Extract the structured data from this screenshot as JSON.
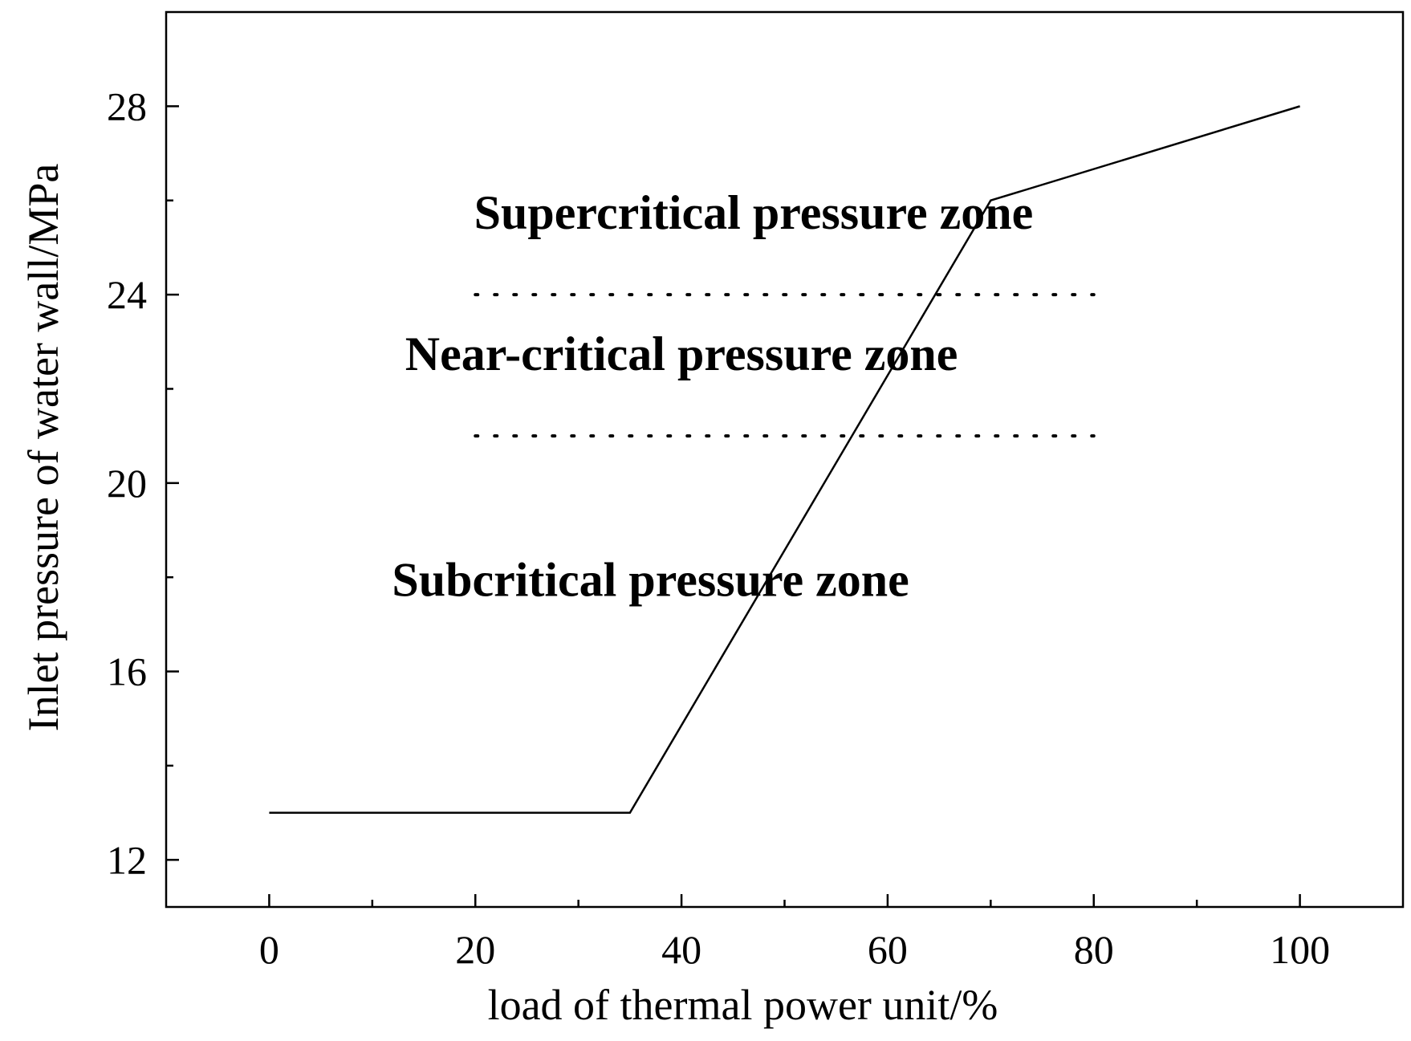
{
  "chart_data": {
    "type": "line",
    "title": "",
    "xlabel": "load of thermal power unit/%",
    "ylabel": "Inlet pressure of water wall/MPa",
    "xlim": [
      -10,
      110
    ],
    "ylim": [
      11,
      30
    ],
    "xticks": [
      0,
      20,
      40,
      60,
      80,
      100
    ],
    "xticks_minor": [
      10,
      30,
      50,
      70,
      90
    ],
    "yticks": [
      12,
      16,
      20,
      24,
      28
    ],
    "yticks_minor": [
      14,
      18,
      22,
      26
    ],
    "grid": false,
    "legend": "none",
    "series": [
      {
        "x": [
          0,
          35,
          70,
          100
        ],
        "y": [
          13,
          13,
          26,
          28
        ],
        "color": "#000000"
      }
    ],
    "boundaries": [
      {
        "y": 24,
        "x_start": 20,
        "x_end": 80,
        "style": "dotted"
      },
      {
        "y": 21,
        "x_start": 20,
        "x_end": 80,
        "style": "dotted"
      }
    ],
    "annotations": [
      {
        "text": "Supercritical pressure zone",
        "x": 47,
        "y": 25.4
      },
      {
        "text": "Near-critical pressure zone",
        "x": 40,
        "y": 22.4
      },
      {
        "text": "Subcritical pressure zone",
        "x": 37,
        "y": 17.6
      }
    ]
  }
}
